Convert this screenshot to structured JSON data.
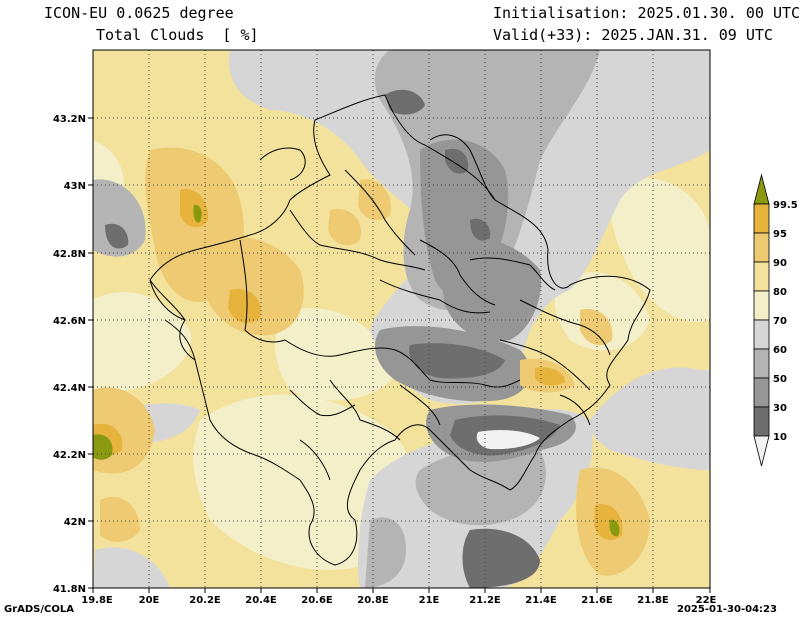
{
  "header": {
    "model": "ICON-EU 0.0625 degree",
    "variable": "Total Clouds  [ %]",
    "init": "Initialisation: 2025.01.30. 00 UTC",
    "valid": "Valid(+33): 2025.JAN.31. 09 UTC"
  },
  "footer": {
    "left": "GrADS/COLA",
    "right": "2025-01-30-04:23"
  },
  "map": {
    "lat_labels": [
      "43.2N",
      "43N",
      "42.8N",
      "42.6N",
      "42.4N",
      "42.2N",
      "42N",
      "41.8N"
    ],
    "lon_labels": [
      "19.8E",
      "20E",
      "20.2E",
      "20.4E",
      "20.6E",
      "20.8E",
      "21E",
      "21.2E",
      "21.4E",
      "21.6E",
      "21.8E",
      "22E"
    ]
  },
  "colorbar": {
    "levels": [
      "99.5",
      "95",
      "90",
      "80",
      "70",
      "60",
      "50",
      "30",
      "10"
    ],
    "colors": {
      "above_99_5": "#8a9a10",
      "95_99_5": "#e6b43c",
      "90_95": "#eecb72",
      "80_90": "#f2e29c",
      "70_80": "#f3efc8",
      "60_70": "#d6d6d6",
      "50_60": "#b4b4b4",
      "30_50": "#969696",
      "10_30": "#6e6e6e",
      "below_10": "#f2f2f2"
    }
  }
}
